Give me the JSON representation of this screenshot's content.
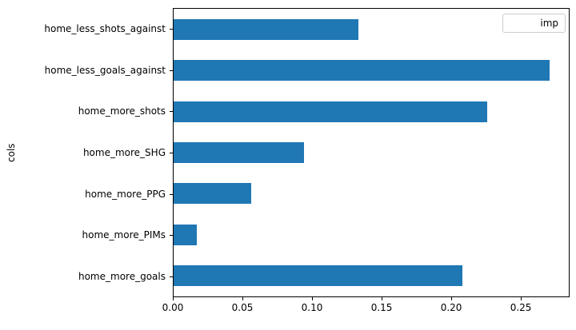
{
  "figure": {
    "background": "#ffffff",
    "text_color": "#000000"
  },
  "chart_data": {
    "type": "bar",
    "orientation": "horizontal",
    "title": "",
    "xlabel": "",
    "ylabel": "cols",
    "grid": false,
    "bar_color": "#1f77b4",
    "categories": [
      "home_less_shots_against",
      "home_less_goals_against",
      "home_more_shots",
      "home_more_SHG",
      "home_more_PPG",
      "home_more_PIMs",
      "home_more_goals"
    ],
    "series": [
      {
        "name": "imp",
        "values": [
          0.133,
          0.271,
          0.226,
          0.094,
          0.056,
          0.017,
          0.208
        ]
      }
    ],
    "xlim": [
      0,
      0.285
    ],
    "xticks": {
      "values": [
        0,
        0.05,
        0.1,
        0.15,
        0.2,
        0.25
      ],
      "labels": [
        "0.00",
        "0.05",
        "0.10",
        "0.15",
        "0.20",
        "0.25"
      ]
    },
    "legend": {
      "entries": [
        "imp"
      ],
      "position": "upper right",
      "swatch_color": "#1f77b4",
      "border_color": "#cccccc"
    }
  }
}
